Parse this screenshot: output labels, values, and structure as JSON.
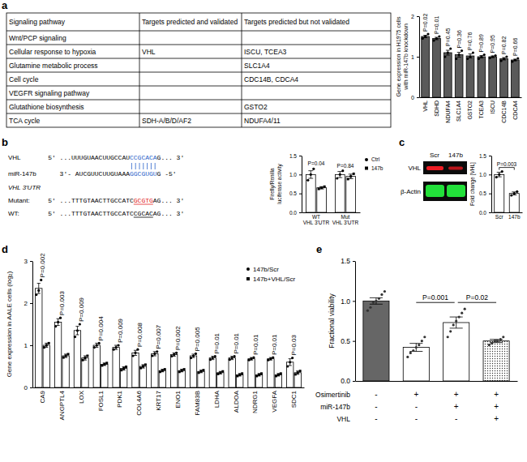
{
  "panel_labels": [
    "a",
    "b",
    "c",
    "d",
    "e"
  ],
  "table": {
    "header": [
      "Signaling pathway",
      "Targets predicted and validated",
      "Targets predicted but not validated"
    ],
    "rows": [
      [
        "Wnt/PCP signaling",
        null,
        null
      ],
      [
        "Cellular response to hypoxia",
        "VHL",
        "ISCU, TCEA3"
      ],
      [
        "Glutamine metabolic process",
        null,
        "SLC1A4"
      ],
      [
        "Cell cycle",
        null,
        "CDC14B, CDCA4"
      ],
      [
        "VEGFR signaling pathway",
        null,
        null
      ],
      [
        "Glutathione biosynthesis",
        null,
        "GSTO2"
      ],
      [
        "TCA cycle",
        "SDH-A/B/D/AF2",
        "NDUFA4/11"
      ]
    ]
  },
  "sequence_alignment": {
    "rows": [
      {
        "label": "VHL",
        "before": "5' ...UUUGUAACUUGCCAU",
        "match": "CCGCACA",
        "after": "G... 3'",
        "color": "#2a62c9"
      },
      {
        "label": "miR-147b",
        "before": "3'- AUCGUUCUUGUAAA",
        "match": "GGCGUGU",
        "after": "G -5'",
        "color": "#2a62c9"
      }
    ],
    "utr_title": "VHL 3'UTR",
    "utr_rows": [
      {
        "label": "Mutant:",
        "before": "5' ...TTTGTAACTTGCCATC",
        "match": "GCGTG",
        "after": "AG... 3'",
        "color": "#e02020"
      },
      {
        "label": "WT:",
        "before": "5' ...TTTGTAACTTGCCATC",
        "match": "CGCAC",
        "after": "AG... 3'",
        "color": "#000000"
      }
    ]
  },
  "blot": {
    "lanes": [
      "Scr",
      "147b"
    ],
    "rows": [
      "VHL",
      "β-Actin"
    ]
  },
  "condition_table": {
    "rows": [
      {
        "label": "Osimertinib",
        "values": [
          "-",
          "+",
          "+",
          "+"
        ]
      },
      {
        "label": "miR-147b",
        "values": [
          "-",
          "-",
          "+",
          "+"
        ]
      },
      {
        "label": "VHL",
        "values": [
          "-",
          "-",
          "-",
          "+"
        ]
      }
    ]
  },
  "chart_data": [
    {
      "type": "bar",
      "y_label": [
        "Gene expression in H1975 cells",
        "with miR-147b knockdown"
      ],
      "categories": [
        "VHL",
        "SDHD",
        "NDUFA4",
        "SLC1A4",
        "GSTO2",
        "TCEA3",
        "ISCU",
        "CDC14B",
        "CDCA4"
      ],
      "values": [
        1.5,
        1.45,
        1.1,
        1.05,
        1.02,
        1.0,
        1.0,
        0.95,
        0.92
      ],
      "errors": [
        0.03,
        0.03,
        0.06,
        0.06,
        0.05,
        0.03,
        0.02,
        0.03,
        0.02
      ],
      "points": [
        [
          1.45,
          1.5,
          1.56
        ],
        [
          1.4,
          1.45,
          1.5
        ],
        [
          1.0,
          1.1,
          1.2
        ],
        [
          0.95,
          1.05,
          1.15
        ],
        [
          0.95,
          1.0,
          1.1
        ],
        [
          0.95,
          1.0,
          1.05
        ],
        [
          0.97,
          1.0,
          1.03
        ],
        [
          0.9,
          0.95,
          1.0
        ],
        [
          0.88,
          0.92,
          0.96
        ]
      ],
      "annotations": [
        "P=0.02",
        "P=0.01",
        "P=0.45",
        "P=0.36",
        "P=0.76",
        "P=0.89",
        "P=0.95",
        "P=0.82",
        "P=0.66"
      ],
      "color": "#5a5a5a",
      "marker": "circle",
      "ylim": [
        0,
        2
      ],
      "yticks": [
        0,
        1,
        2
      ]
    },
    {
      "type": "bar",
      "y_label": [
        "Firefly/Renilla",
        "luciferase activity"
      ],
      "categories": [
        "WT VHL 3'UTR",
        "Mut VHL 3'UTR"
      ],
      "series": [
        {
          "name": "Ctrl",
          "color": "#ffffff",
          "marker": "circle",
          "values": [
            1.0,
            1.0
          ],
          "errors": [
            0.1,
            0.08
          ],
          "points": [
            [
              0.85,
              1.0,
              1.15
            ],
            [
              0.9,
              1.0,
              1.1
            ]
          ]
        },
        {
          "name": "147b",
          "color": "#ffffff",
          "marker": "square",
          "values": [
            0.65,
            0.95
          ],
          "errors": [
            0.03,
            0.06
          ],
          "points": [
            [
              0.62,
              0.65,
              0.68
            ],
            [
              0.88,
              0.95,
              1.02
            ]
          ]
        }
      ],
      "annotations": [
        "P=0.04",
        "P=0.84"
      ],
      "legend": "upper right",
      "ylim": [
        0,
        1.5
      ],
      "yticks": [
        {
          "value": 0,
          "label": "0.0"
        },
        {
          "value": 0.5,
          "label": "0.5"
        },
        {
          "value": 1,
          "label": "1.0"
        },
        {
          "value": 1.5,
          "label": "1.5"
        }
      ]
    },
    {
      "type": "bar",
      "y_label": "Fold change [VHL]",
      "categories": [
        "Scr",
        "147b"
      ],
      "values": [
        1.0,
        0.5
      ],
      "errors": [
        0.06,
        0.04
      ],
      "points": [
        [
          0.93,
          1.0,
          1.08
        ],
        [
          0.45,
          0.5,
          0.55
        ]
      ],
      "annotations": [
        "P=0.003"
      ],
      "color": "#ffffff",
      "marker": "circle",
      "ylim": [
        0,
        1.5
      ],
      "yticks": [
        {
          "value": 0,
          "label": "0.0"
        },
        {
          "value": 0.5,
          "label": "0.5"
        },
        {
          "value": 1,
          "label": "1.0"
        },
        {
          "value": 1.5,
          "label": "1.5"
        }
      ]
    },
    {
      "type": "bar",
      "y_label": "Gene expression in AALE cells (log₂)",
      "categories": [
        "CA9",
        "ANGPTL4",
        "LOX",
        "FOSL1",
        "PDK1",
        "COL4A6",
        "KRT17",
        "ENO1",
        "FAM83B",
        "LDHA",
        "ALDOA",
        "NDRG1",
        "VEGFA",
        "SDC1"
      ],
      "series": [
        {
          "name": "147b/Scr",
          "color": "#ffffff",
          "marker": "circle",
          "values": [
            2.35,
            1.55,
            1.35,
            1.0,
            0.95,
            0.82,
            0.8,
            0.78,
            0.75,
            0.7,
            0.7,
            0.68,
            0.68,
            0.6
          ],
          "errors": [
            0.12,
            0.08,
            0.1,
            0.05,
            0.05,
            0.06,
            0.05,
            0.04,
            0.04,
            0.04,
            0.04,
            0.03,
            0.03,
            0.08
          ],
          "points": [
            [
              2.2,
              2.3,
              2.55
            ],
            [
              1.45,
              1.55,
              1.65
            ],
            [
              1.2,
              1.35,
              1.5
            ],
            [
              0.95,
              1.0,
              1.05
            ],
            [
              0.9,
              0.95,
              1.0
            ],
            [
              0.75,
              0.82,
              0.9
            ],
            [
              0.75,
              0.8,
              0.85
            ],
            [
              0.74,
              0.78,
              0.82
            ],
            [
              0.7,
              0.75,
              0.8
            ],
            [
              0.66,
              0.7,
              0.74
            ],
            [
              0.66,
              0.7,
              0.74
            ],
            [
              0.65,
              0.68,
              0.71
            ],
            [
              0.65,
              0.68,
              0.71
            ],
            [
              0.5,
              0.6,
              0.7
            ]
          ]
        },
        {
          "name": "147b+VHL/Scr",
          "color": "#ffffff",
          "marker": "square",
          "values": [
            1.0,
            0.75,
            0.7,
            0.55,
            0.45,
            0.5,
            0.4,
            0.4,
            0.38,
            0.35,
            0.3,
            0.3,
            0.3,
            0.35
          ],
          "errors": [
            0.05,
            0.04,
            0.05,
            0.03,
            0.04,
            0.04,
            0.03,
            0.03,
            0.03,
            0.03,
            0.03,
            0.03,
            0.03,
            0.04
          ],
          "points": [
            [
              0.95,
              1.0,
              1.05
            ],
            [
              0.71,
              0.75,
              0.79
            ],
            [
              0.65,
              0.7,
              0.75
            ],
            [
              0.52,
              0.55,
              0.58
            ],
            [
              0.41,
              0.45,
              0.49
            ],
            [
              0.46,
              0.5,
              0.54
            ],
            [
              0.37,
              0.4,
              0.43
            ],
            [
              0.37,
              0.4,
              0.43
            ],
            [
              0.35,
              0.38,
              0.41
            ],
            [
              0.32,
              0.35,
              0.38
            ],
            [
              0.27,
              0.3,
              0.33
            ],
            [
              0.27,
              0.3,
              0.33
            ],
            [
              0.27,
              0.3,
              0.33
            ],
            [
              0.31,
              0.35,
              0.39
            ]
          ]
        }
      ],
      "annotations": [
        "P=0.002",
        "P=0.003",
        "P=0.009",
        "P=0.004",
        "P=0.009",
        "P=0.008",
        "P=0.007",
        "P=0.002",
        "P=0.005",
        "P=0.01",
        "P=0.01",
        "P=0.01",
        "P=0.01",
        "P=0.03"
      ],
      "legend": "upper right",
      "ylim": [
        0,
        3
      ],
      "yticks": [
        0,
        1,
        2,
        3
      ]
    },
    {
      "type": "bar",
      "y_label": "Fractional viability",
      "categories": [
        null,
        null,
        null,
        null
      ],
      "values": [
        1.0,
        0.42,
        0.73,
        0.5
      ],
      "errors": [
        0.04,
        0.05,
        0.07,
        0.02
      ],
      "points": [
        [
          0.88,
          0.92,
          0.98,
          1.0,
          1.03,
          1.08,
          1.12
        ],
        [
          0.3,
          0.35,
          0.38,
          0.42,
          0.45,
          0.5,
          0.55
        ],
        [
          0.55,
          0.62,
          0.7,
          0.75,
          0.8,
          0.85,
          0.9
        ],
        [
          0.45,
          0.47,
          0.5,
          0.5,
          0.52,
          0.55
        ]
      ],
      "annotations": [
        "P=0.001",
        "P=0.02"
      ],
      "colors": [
        "#666666",
        "#ffffff",
        "#ffffff",
        "#ffffff"
      ],
      "marker": "circle",
      "ylim": [
        0,
        1.5
      ],
      "yticks": [
        {
          "value": 0,
          "label": "0.0"
        },
        {
          "value": 0.5,
          "label": "0.5"
        },
        {
          "value": 1,
          "label": "1.0"
        },
        {
          "value": 1.5,
          "label": "1.5"
        }
      ]
    }
  ]
}
